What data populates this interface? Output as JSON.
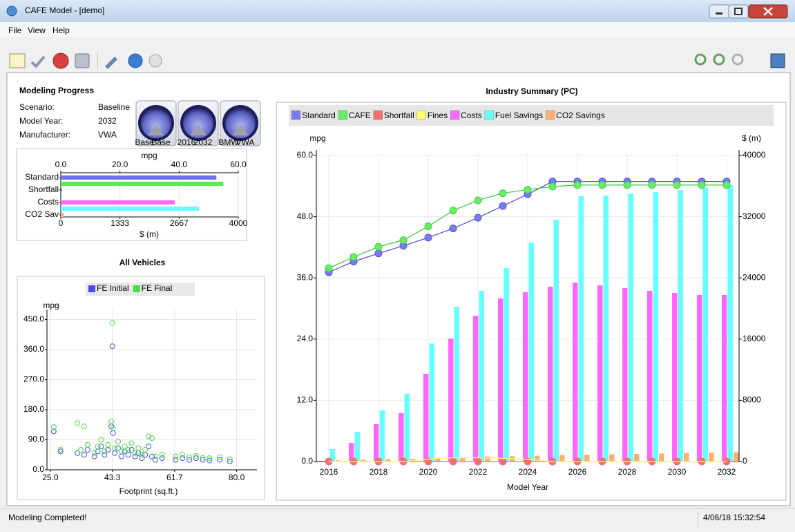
{
  "window": {
    "title": "CAFE Model - [demo]",
    "menu": [
      "File",
      "View",
      "Help"
    ],
    "status": "Modeling Completed!",
    "timestamp": "4/06/18 15:32:54"
  },
  "progress": {
    "title": "Modeling Progress",
    "fields": [
      {
        "label": "Scenario:",
        "value": "Baseline"
      },
      {
        "label": "Model Year:",
        "value": "2032"
      },
      {
        "label": "Manufacturer:",
        "value": "VWA"
      }
    ],
    "gauges": [
      [
        "Base",
        "Base"
      ],
      [
        "2016",
        "2032"
      ],
      [
        "BMW",
        "VWA"
      ]
    ]
  },
  "chart_data": [
    {
      "type": "hbar",
      "xlabel": "mpg",
      "x2label": "$ (m)",
      "categories": [
        "Standard",
        null,
        "Shortfall",
        null,
        "Costs",
        null,
        "CO2 Sav"
      ],
      "values": [
        52.6,
        54.9,
        0,
        0,
        2568,
        3113,
        62
      ],
      "colors": [
        "#7070ee",
        "#55ee55",
        "#f07070",
        "#ffff70",
        "#ff66ff",
        "#66ffff",
        "#ffaa66"
      ],
      "axes": [
        "x",
        "x",
        "x",
        "x",
        "x2",
        "x2",
        "x2"
      ],
      "xlim": [
        0,
        60
      ],
      "xticks": [
        {
          "value": 0,
          "label": "0.0"
        },
        {
          "value": 20,
          "label": "20.0"
        },
        {
          "value": 40,
          "label": "40.0"
        },
        {
          "value": 60,
          "label": "60.0"
        }
      ],
      "x2lim": [
        0,
        4000
      ],
      "x2ticks": [
        0,
        1333,
        2667,
        4000
      ],
      "grid": true
    },
    {
      "type": "scatter",
      "title": "All Vehicles",
      "xlabel": "Footprint (sq.ft.)",
      "ylabel": "mpg",
      "series": [
        {
          "name": "FE Initial",
          "color": "#4a4ae0",
          "x": [
            26,
            28,
            33,
            35,
            36,
            38,
            39,
            40,
            41,
            42,
            43,
            43.3,
            43.5,
            44,
            45,
            46,
            47,
            48,
            49,
            50,
            51,
            52,
            53,
            54,
            55,
            56,
            58,
            62,
            64,
            66,
            68,
            70,
            72,
            75,
            78
          ],
          "values": [
            115,
            55,
            50,
            45,
            60,
            40,
            55,
            70,
            45,
            60,
            130,
            370,
            110,
            50,
            65,
            40,
            55,
            45,
            60,
            40,
            50,
            35,
            45,
            70,
            40,
            30,
            35,
            30,
            35,
            30,
            35,
            30,
            28,
            30,
            25
          ]
        },
        {
          "name": "FE Final",
          "color": "#44dd44",
          "x": [
            26,
            28,
            33,
            34,
            35,
            36,
            38,
            39,
            40,
            41,
            42,
            43,
            43.3,
            43.5,
            44,
            45,
            46,
            47,
            48,
            49,
            50,
            51,
            52,
            53,
            54,
            55,
            56,
            58,
            62,
            64,
            66,
            68,
            70,
            72,
            75,
            78
          ],
          "values": [
            128,
            60,
            140,
            60,
            130,
            75,
            50,
            70,
            90,
            55,
            75,
            145,
            440,
            125,
            65,
            85,
            55,
            70,
            60,
            80,
            50,
            65,
            45,
            60,
            100,
            95,
            40,
            45,
            40,
            45,
            38,
            42,
            36,
            35,
            38,
            32
          ]
        }
      ],
      "xlim": [
        24,
        86
      ],
      "xticks": [
        {
          "value": 25,
          "label": "25.0"
        },
        {
          "value": 43.3,
          "label": "43.3"
        },
        {
          "value": 61.7,
          "label": "61.7"
        },
        {
          "value": 80,
          "label": "80.0"
        }
      ],
      "ylim": [
        0,
        480
      ],
      "yticks": [
        {
          "value": 0,
          "label": "0.0"
        },
        {
          "value": 90,
          "label": "90.0"
        },
        {
          "value": 180,
          "label": "180.0"
        },
        {
          "value": 270,
          "label": "270.0"
        },
        {
          "value": 360,
          "label": "360.0"
        },
        {
          "value": 450,
          "label": "450.0"
        }
      ],
      "grid": true
    },
    {
      "type": "combo",
      "title": "Industry Summary (PC)",
      "ylabel": "mpg",
      "y2label": "$ (m)",
      "xlabel": "Model Year",
      "x": [
        2016,
        2017,
        2018,
        2019,
        2020,
        2021,
        2022,
        2023,
        2024,
        2025,
        2026,
        2027,
        2028,
        2029,
        2030,
        2031,
        2032
      ],
      "series": [
        {
          "name": "Standard",
          "color": "#7b7bf0",
          "kind": "line",
          "values": [
            37.1,
            39.2,
            40.8,
            42.3,
            43.9,
            45.7,
            47.8,
            50.1,
            52.4,
            54.9,
            54.9,
            54.9,
            54.9,
            54.9,
            54.9,
            54.9,
            54.9
          ]
        },
        {
          "name": "CAFE",
          "color": "#66ee66",
          "kind": "line",
          "values": [
            37.9,
            40.1,
            42.1,
            43.4,
            46.1,
            49.2,
            51.2,
            52.6,
            53.3,
            53.9,
            54.2,
            54.2,
            54.2,
            54.2,
            54.2,
            54.2,
            54.2
          ]
        },
        {
          "name": "Shortfall",
          "color": "#f07070",
          "kind": "line",
          "values": [
            0,
            0,
            0,
            0,
            0,
            0,
            0,
            0,
            0,
            0,
            0,
            0,
            0,
            0,
            0,
            0,
            0
          ]
        },
        {
          "name": "Fines",
          "color": "#ffff70",
          "kind": "line",
          "axis": "y2",
          "values": [
            0,
            0,
            0,
            0,
            300,
            500,
            500,
            400,
            300,
            0,
            0,
            0,
            0,
            0,
            0,
            0,
            0
          ]
        },
        {
          "name": "Costs",
          "color": "#ff66ff",
          "kind": "bar",
          "axis": "y2",
          "values": [
            0,
            2438,
            4876,
            6321,
            11468,
            16073,
            19053,
            21310,
            22123,
            22846,
            23388,
            23027,
            22665,
            22304,
            22033,
            21762,
            21762
          ]
        },
        {
          "name": "Fuel Savings",
          "color": "#66ffff",
          "kind": "bar",
          "axis": "y2",
          "values": [
            1625,
            3883,
            6682,
            8849,
            15441,
            20227,
            22304,
            25284,
            28625,
            31605,
            34675,
            34766,
            35036,
            35217,
            35488,
            35759,
            36120
          ]
        },
        {
          "name": "CO2 Savings",
          "color": "#ffb070",
          "kind": "bar",
          "axis": "y2",
          "values": [
            150,
            250,
            300,
            350,
            450,
            550,
            650,
            700,
            750,
            850,
            900,
            950,
            1000,
            1050,
            1100,
            1150,
            1200
          ]
        }
      ],
      "xlim": [
        2015.5,
        2032.5
      ],
      "xticks": [
        2016,
        2018,
        2020,
        2022,
        2024,
        2026,
        2028,
        2030,
        2032
      ],
      "ylim": [
        0,
        60
      ],
      "yticks": [
        {
          "value": 0,
          "label": "0.0"
        },
        {
          "value": 12,
          "label": "12.0"
        },
        {
          "value": 24,
          "label": "24.0"
        },
        {
          "value": 36,
          "label": "36.0"
        },
        {
          "value": 48,
          "label": "48.0"
        },
        {
          "value": 60,
          "label": "60.0"
        }
      ],
      "y2lim": [
        0,
        40000
      ],
      "y2ticks": [
        0,
        8000,
        16000,
        24000,
        32000,
        40000
      ],
      "grid": true
    }
  ]
}
